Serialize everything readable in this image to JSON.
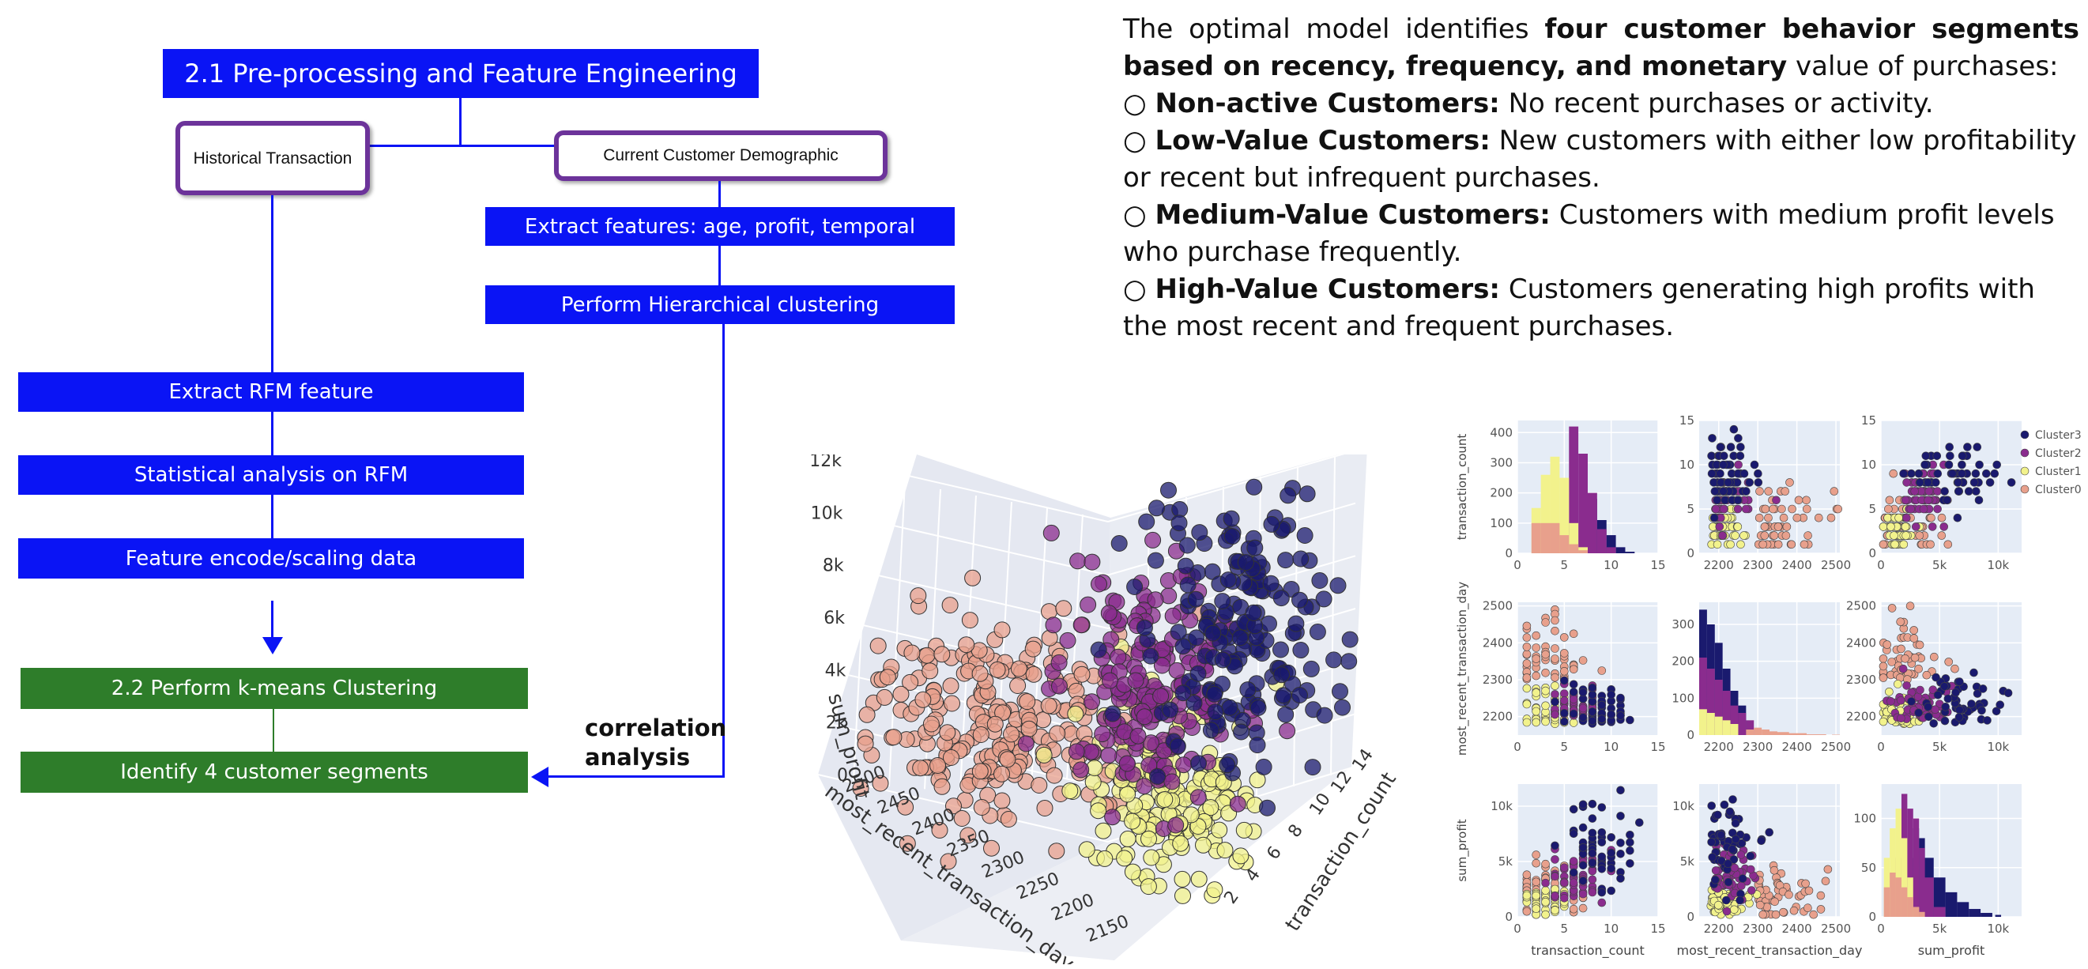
{
  "flow": {
    "title": "2.1 Pre-processing and Feature Engineering",
    "historical": "Historical Transaction",
    "demographic": "Current Customer Demographic",
    "extract_features": "Extract features: age, profit, temporal",
    "hierarchical": "Perform Hierarchical clustering",
    "extract_rfm": "Extract RFM feature",
    "stat_rfm": "Statistical analysis on RFM",
    "encode": "Feature encode/scaling data",
    "kmeans": "2.2 Perform k-means Clustering",
    "identify": "Identify 4 customer segments",
    "correlation_line1": "correlation",
    "correlation_line2": "analysis",
    "colors": {
      "blue": "#0a14f5",
      "green": "#2e7d2a",
      "purple": "#6c339a"
    }
  },
  "description": {
    "intro_prefix": "The optimal model identifies",
    "intro_bold": "four customer behavior segments based on recency, frequency, and monetary",
    "intro_suffix": "value of purchases:",
    "bullet": "○",
    "items": [
      {
        "title": "Non-active Customers:",
        "text": "No recent purchases or activity."
      },
      {
        "title": "Low-Value Customers:",
        "text": "New customers with either low profitability or recent but infrequent purchases."
      },
      {
        "title": "Medium-Value Customers:",
        "text": "Customers with medium profit levels who purchase frequently."
      },
      {
        "title": "High-Value Customers:",
        "text": "Customers generating high profits with the most recent and frequent purchases."
      }
    ]
  },
  "chart_data": [
    {
      "type": "scatter",
      "projection": "3d",
      "axes": {
        "z": {
          "label": "sum_profit",
          "ticks": [
            "0",
            "2k",
            "4k",
            "6k",
            "8k",
            "10k",
            "12k"
          ],
          "range": [
            0,
            12000
          ]
        },
        "x": {
          "label": "most_recent_transaction_day",
          "ticks": [
            "2500",
            "2450",
            "2400",
            "2350",
            "2300",
            "2250",
            "2200",
            "2150"
          ],
          "range": [
            2150,
            2500
          ]
        },
        "y": {
          "label": "transaction_count",
          "ticks": [
            "2",
            "4",
            "6",
            "8",
            "10",
            "12",
            "14"
          ],
          "range": [
            0,
            14
          ]
        }
      },
      "series": [
        {
          "name": "Cluster0",
          "color": "#e8a08c",
          "approx_center": {
            "day": 2400,
            "count": 4,
            "profit": 2000
          }
        },
        {
          "name": "Cluster1",
          "color": "#f2f28c",
          "approx_center": {
            "day": 2220,
            "count": 3,
            "profit": 1500
          }
        },
        {
          "name": "Cluster2",
          "color": "#8a2c8e",
          "approx_center": {
            "day": 2230,
            "count": 7,
            "profit": 3500
          }
        },
        {
          "name": "Cluster3",
          "color": "#1a1a6e",
          "approx_center": {
            "day": 2200,
            "count": 10,
            "profit": 7000
          }
        }
      ],
      "grid": true
    },
    {
      "type": "scatter",
      "subtype": "pair-plot",
      "variables": [
        "transaction_count",
        "most_recent_transaction_day",
        "sum_profit"
      ],
      "axis_ticks": {
        "transaction_count": [
          "0",
          "5",
          "10",
          "15"
        ],
        "most_recent_transaction_day": [
          "2200",
          "2300",
          "2400",
          "2500"
        ],
        "sum_profit": [
          "0",
          "5k",
          "10k"
        ]
      },
      "diag_hist_yticks": {
        "transaction_count": [
          "0",
          "100",
          "200",
          "300",
          "400"
        ],
        "most_recent_transaction_day": [
          "0",
          "100",
          "200",
          "300"
        ],
        "sum_profit": [
          "0",
          "50",
          "100"
        ]
      },
      "legend": [
        "Cluster3",
        "Cluster2",
        "Cluster1",
        "Cluster0"
      ],
      "legend_position": "right",
      "colors": {
        "Cluster3": "#1a1a6e",
        "Cluster2": "#8a2c8e",
        "Cluster1": "#f2f28c",
        "Cluster0": "#e8a08c"
      },
      "histograms": {
        "transaction_count": {
          "bins": [
            2,
            3,
            4,
            5,
            6,
            7,
            8,
            9,
            10,
            11,
            12
          ],
          "Cluster0": [
            100,
            100,
            100,
            60,
            30,
            10,
            0,
            0,
            0,
            0,
            0
          ],
          "Cluster1": [
            150,
            260,
            320,
            250,
            100,
            20,
            0,
            0,
            0,
            0,
            0
          ],
          "Cluster2": [
            0,
            0,
            0,
            100,
            420,
            330,
            200,
            80,
            20,
            0,
            0
          ],
          "Cluster3": [
            0,
            0,
            0,
            0,
            0,
            20,
            180,
            110,
            60,
            20,
            5
          ]
        },
        "most_recent_transaction_day": {
          "bins": [
            2160,
            2180,
            2200,
            2220,
            2240,
            2260,
            2280,
            2300,
            2320,
            2340,
            2360,
            2400,
            2450,
            2500
          ],
          "Cluster0": [
            0,
            0,
            0,
            0,
            0,
            0,
            15,
            20,
            15,
            10,
            8,
            5,
            2,
            1
          ],
          "Cluster1": [
            70,
            60,
            50,
            40,
            30,
            0,
            0,
            0,
            0,
            0,
            0,
            0,
            0,
            0
          ],
          "Cluster2": [
            210,
            180,
            150,
            120,
            80,
            60,
            40,
            0,
            0,
            0,
            0,
            0,
            0,
            0
          ],
          "Cluster3": [
            340,
            300,
            250,
            180,
            120,
            80,
            0,
            0,
            0,
            0,
            0,
            0,
            0,
            0
          ]
        },
        "sum_profit": {
          "bins": [
            500,
            1000,
            1500,
            2000,
            2500,
            3000,
            3500,
            4000,
            5000,
            6000,
            7000,
            8000,
            9000,
            10000
          ],
          "Cluster0": [
            30,
            45,
            40,
            30,
            20,
            10,
            5,
            0,
            0,
            0,
            0,
            0,
            0,
            0
          ],
          "Cluster1": [
            60,
            90,
            110,
            80,
            40,
            10,
            0,
            0,
            0,
            0,
            0,
            0,
            0,
            0
          ],
          "Cluster2": [
            0,
            0,
            60,
            125,
            110,
            100,
            70,
            40,
            10,
            0,
            0,
            0,
            0,
            0
          ],
          "Cluster3": [
            0,
            0,
            0,
            0,
            60,
            90,
            80,
            60,
            40,
            25,
            15,
            8,
            4,
            2
          ]
        }
      }
    }
  ]
}
